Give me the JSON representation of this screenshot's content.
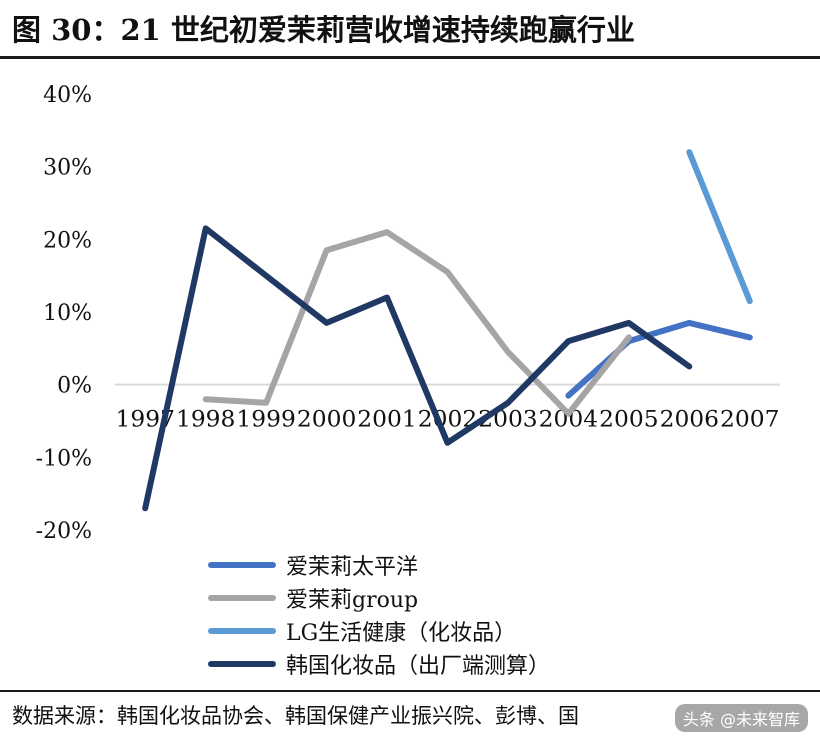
{
  "title": "图  30：21 世纪初爱茉莉营收增速持续跑赢行业",
  "source": "数据来源：韩国化妆品协会、韩国保健产业振兴院、彭博、国",
  "watermark": "头条 @未来智库",
  "chart_data": {
    "type": "line",
    "categories": [
      "1997",
      "1998",
      "1999",
      "2000",
      "2001",
      "2002",
      "2003",
      "2004",
      "2005",
      "2006",
      "2007"
    ],
    "yticks": [
      "40%",
      "30%",
      "20%",
      "10%",
      "0%",
      "-10%",
      "-20%"
    ],
    "ylim": [
      -20,
      40
    ],
    "grid": false,
    "legend_position": "bottom",
    "series": [
      {
        "name": "爱茉莉太平洋",
        "color": "#4472c4",
        "values": [
          null,
          null,
          null,
          null,
          null,
          null,
          null,
          -1.5,
          6.0,
          8.5,
          6.5
        ]
      },
      {
        "name": "爱茉莉group",
        "color": "#a5a5a5",
        "values": [
          null,
          -2.0,
          -2.5,
          18.5,
          21.0,
          15.5,
          4.5,
          -4.0,
          6.5,
          null,
          null
        ]
      },
      {
        "name": "LG生活健康（化妆品）",
        "color": "#5b9bd5",
        "values": [
          null,
          null,
          null,
          null,
          null,
          null,
          null,
          null,
          null,
          32.0,
          11.5
        ]
      },
      {
        "name": "韩国化妆品（出厂端测算）",
        "color": "#203864",
        "values": [
          -17.0,
          21.5,
          15.0,
          8.5,
          12.0,
          -8.0,
          -2.5,
          6.0,
          8.5,
          2.5,
          null
        ]
      }
    ]
  }
}
